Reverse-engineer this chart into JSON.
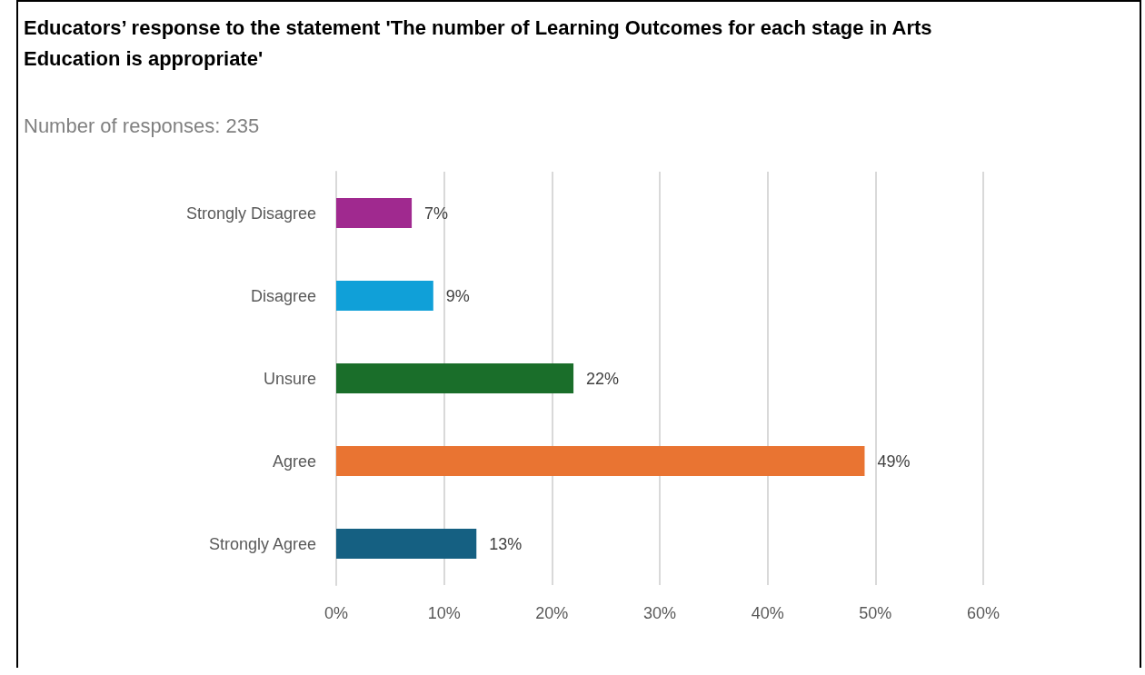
{
  "chart_data": {
    "type": "bar",
    "orientation": "horizontal",
    "title": "Educators’ response to the statement 'The number of Learning Outcomes for each stage in Arts Education is appropriate'",
    "subtitle": "Number of responses: 235",
    "categories": [
      "Strongly Disagree",
      "Disagree",
      "Unsure",
      "Agree",
      "Strongly Agree"
    ],
    "values": [
      7,
      9,
      22,
      49,
      13
    ],
    "colors": [
      "#a0298f",
      "#10a0d8",
      "#1a6e2a",
      "#e97432",
      "#156082"
    ],
    "value_labels": [
      "7%",
      "9%",
      "22%",
      "49%",
      "13%"
    ],
    "xlim": [
      0,
      60
    ],
    "xticks": [
      {
        "value": 0,
        "label": "0%"
      },
      {
        "value": 10,
        "label": "10%"
      },
      {
        "value": 20,
        "label": "20%"
      },
      {
        "value": 30,
        "label": "30%"
      },
      {
        "value": 40,
        "label": "40%"
      },
      {
        "value": 50,
        "label": "50%"
      },
      {
        "value": 60,
        "label": "60%"
      }
    ],
    "grid": "x"
  }
}
